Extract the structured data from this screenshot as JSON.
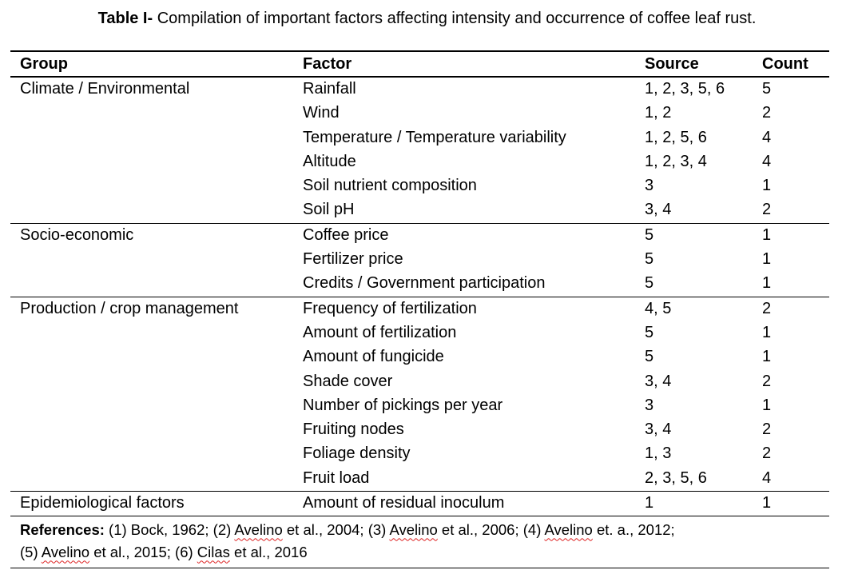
{
  "caption": {
    "label": "Table I-",
    "text": " Compilation of important factors affecting intensity and occurrence of coffee leaf rust."
  },
  "table": {
    "headers": {
      "group": "Group",
      "factor": "Factor",
      "source": "Source",
      "count": "Count"
    },
    "groups": [
      {
        "name": "Climate / Environmental",
        "rows": [
          {
            "factor": "Rainfall",
            "source": "1, 2, 3, 5, 6",
            "count": "5"
          },
          {
            "factor": "Wind",
            "source": "1, 2",
            "count": "2"
          },
          {
            "factor": "Temperature / Temperature variability",
            "source": "1, 2, 5, 6",
            "count": "4"
          },
          {
            "factor": "Altitude",
            "source": "1, 2, 3, 4",
            "count": "4"
          },
          {
            "factor": "Soil nutrient composition",
            "source": "3",
            "count": "1"
          },
          {
            "factor": "Soil pH",
            "source": "3, 4",
            "count": "2"
          }
        ]
      },
      {
        "name": "Socio-economic",
        "rows": [
          {
            "factor": "Coffee price",
            "source": "5",
            "count": "1"
          },
          {
            "factor": "Fertilizer price",
            "source": "5",
            "count": "1"
          },
          {
            "factor": "Credits / Government participation",
            "source": "5",
            "count": "1"
          }
        ]
      },
      {
        "name": "Production / crop management",
        "rows": [
          {
            "factor": "Frequency of fertilization",
            "source": "4, 5",
            "count": "2"
          },
          {
            "factor": "Amount of fertilization",
            "source": "5",
            "count": "1"
          },
          {
            "factor": "Amount of fungicide",
            "source": "5",
            "count": "1"
          },
          {
            "factor": "Shade cover",
            "source": "3, 4",
            "count": "2"
          },
          {
            "factor": "Number of pickings per year",
            "source": "3",
            "count": "1"
          },
          {
            "factor": "Fruiting nodes",
            "source": "3, 4",
            "count": "2"
          },
          {
            "factor": "Foliage density",
            "source": "1, 3",
            "count": "2"
          },
          {
            "factor": "Fruit load",
            "source": "2, 3, 5, 6",
            "count": "4"
          }
        ]
      },
      {
        "name": "Epidemiological factors",
        "rows": [
          {
            "factor": "Amount of residual inoculum",
            "source": "1",
            "count": "1"
          }
        ]
      }
    ]
  },
  "references": {
    "label": "References:",
    "parts": [
      {
        "text": " (1) Bock, 1962; (2) ",
        "spell": false
      },
      {
        "text": "Avelino",
        "spell": true
      },
      {
        "text": " et al., 2004; (3) ",
        "spell": false
      },
      {
        "text": "Avelino",
        "spell": true
      },
      {
        "text": " et al., 2006; (4) ",
        "spell": false
      },
      {
        "text": "Avelino",
        "spell": true
      },
      {
        "text": " et. a., 2012;",
        "spell": false
      },
      {
        "text": "\n",
        "spell": false
      },
      {
        "text": "(5) ",
        "spell": false
      },
      {
        "text": "Avelino",
        "spell": true
      },
      {
        "text": " et al., 2015; (6) ",
        "spell": false
      },
      {
        "text": "Cilas",
        "spell": true
      },
      {
        "text": " et al., 2016",
        "spell": false
      }
    ]
  }
}
